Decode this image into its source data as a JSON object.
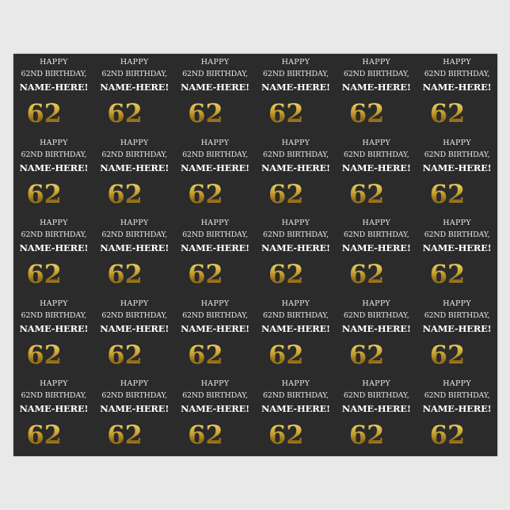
{
  "tile": {
    "line1": "HAPPY",
    "line2": "62ND BIRTHDAY,",
    "name": "NAME-HERE!",
    "number": "62",
    "suffix": "nd"
  },
  "grid": {
    "columns": 6,
    "rows": 5
  },
  "colors": {
    "background": "#e9e9e9",
    "paper": "#2b2b2b",
    "gold": "#c9a131",
    "text": "#e8e8e8"
  }
}
